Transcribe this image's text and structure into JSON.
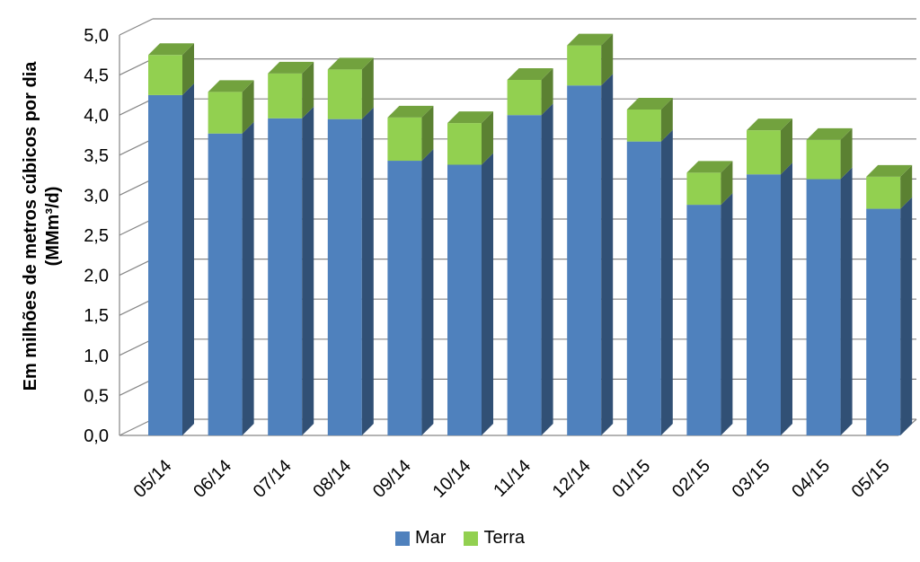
{
  "chart_data": {
    "type": "bar",
    "stacked": true,
    "three_d": true,
    "categories": [
      "05/14",
      "06/14",
      "07/14",
      "08/14",
      "09/14",
      "10/14",
      "11/14",
      "12/14",
      "01/15",
      "02/15",
      "03/15",
      "04/15",
      "05/15"
    ],
    "series": [
      {
        "name": "Mar",
        "color": "#4F81BD",
        "values": [
          4.25,
          3.77,
          3.96,
          3.95,
          3.43,
          3.38,
          4.0,
          4.37,
          3.67,
          2.88,
          3.26,
          3.2,
          2.83
        ]
      },
      {
        "name": "Terra",
        "color": "#92D050",
        "values": [
          0.5,
          0.52,
          0.56,
          0.62,
          0.54,
          0.52,
          0.44,
          0.5,
          0.4,
          0.4,
          0.55,
          0.49,
          0.4
        ]
      }
    ],
    "ylabel": "Em milhões de metros cúbicos por dia (MMm³/d)",
    "ylabel_lines": [
      "Em milhões de metros cúbicos por dia",
      "(MMm³/d)"
    ],
    "ylim": [
      0,
      5
    ],
    "y_ticks": [
      "0,0",
      "0,5",
      "1,0",
      "1,5",
      "2,0",
      "2,5",
      "3,0",
      "3,5",
      "4,0",
      "4,5",
      "5,0"
    ],
    "grid": true,
    "legend_position": "bottom"
  }
}
